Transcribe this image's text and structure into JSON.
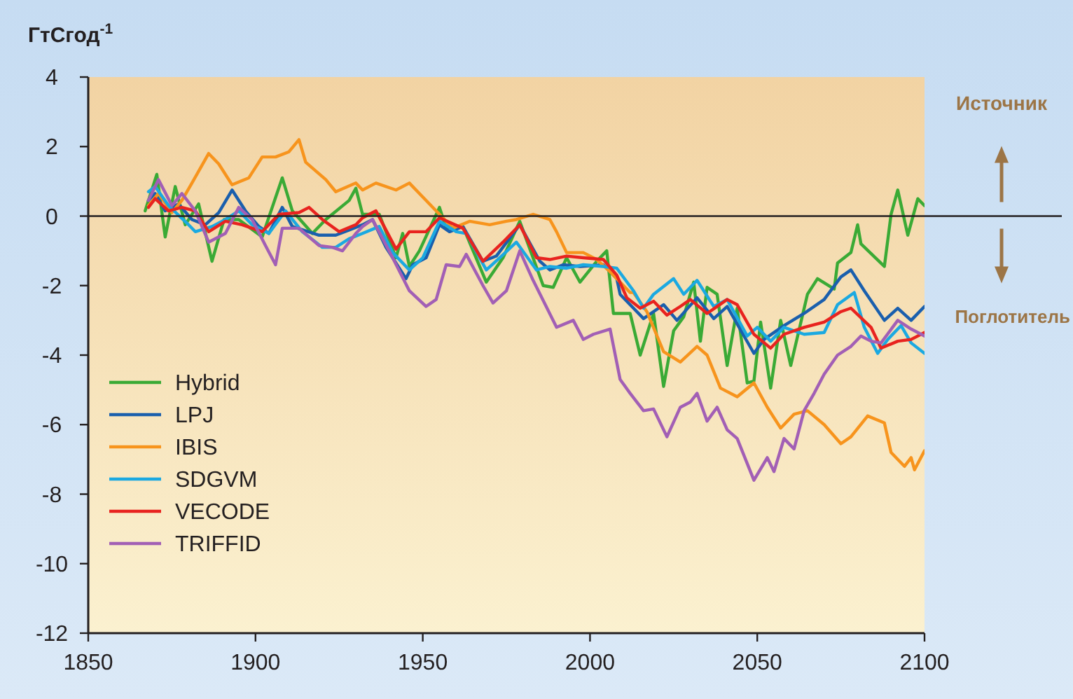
{
  "chart_data": {
    "type": "line",
    "ylabel": "ГтСгод$^{-1}$",
    "xlim": [
      1850,
      2100
    ],
    "ylim": [
      -12,
      4
    ],
    "xticks": [
      1850,
      1900,
      1950,
      2000,
      2050,
      2100
    ],
    "yticks": [
      -12,
      -10,
      -8,
      -6,
      -4,
      -2,
      0,
      2,
      4
    ],
    "grid": false,
    "legend": "bottom left",
    "line_style": "solid",
    "marker": "none",
    "ref_lines": [
      {
        "axis": "y",
        "value": 0,
        "color": "#231f20"
      }
    ],
    "annotations": [
      "Источник",
      "Поглотитель"
    ],
    "series": [
      {
        "name": "Hybrid",
        "color": "#3aaa35",
        "x": [
          1867,
          1870.5,
          1873,
          1876,
          1879,
          1883,
          1887,
          1890.6,
          1895,
          1902,
          1908,
          1911,
          1917,
          1921,
          1928,
          1930,
          1932,
          1937,
          1942,
          1944,
          1946,
          1949,
          1955,
          1957,
          1962,
          1969,
          1974,
          1979,
          1986,
          1989,
          1993,
          1997,
          2002,
          2005,
          2007,
          2012,
          2015,
          2019,
          2022,
          2025,
          2028,
          2031,
          2033,
          2035,
          2038,
          2041,
          2044,
          2047,
          2049,
          2051,
          2054,
          2057,
          2060,
          2065,
          2068,
          2073,
          2074,
          2078,
          2080,
          2081,
          2088,
          2090,
          2092,
          2095,
          2098,
          2100
        ],
        "values": [
          0.15,
          1.2,
          -0.6,
          0.85,
          -0.25,
          0.35,
          -1.3,
          -0.1,
          -0.1,
          -0.6,
          1.1,
          0.15,
          -0.5,
          -0.1,
          0.45,
          0.8,
          0.05,
          0.05,
          -1.2,
          -0.5,
          -1.45,
          -1.0,
          0.25,
          -0.35,
          -0.3,
          -1.9,
          -1.2,
          -0.15,
          -2.0,
          -2.05,
          -1.2,
          -1.9,
          -1.3,
          -1.0,
          -2.8,
          -2.8,
          -4.0,
          -2.8,
          -4.9,
          -3.3,
          -2.9,
          -1.9,
          -3.6,
          -2.05,
          -2.25,
          -4.3,
          -2.65,
          -4.8,
          -4.75,
          -3.05,
          -4.95,
          -3.0,
          -4.3,
          -2.25,
          -1.8,
          -2.1,
          -1.35,
          -1.05,
          -0.25,
          -0.8,
          -1.45,
          0.05,
          0.75,
          -0.55,
          0.5,
          0.3
        ]
      },
      {
        "name": "LPJ",
        "color": "#1a5fad",
        "x": [
          1868,
          1870,
          1873,
          1877,
          1881,
          1885,
          1889,
          1893,
          1897,
          1901,
          1904,
          1908,
          1911,
          1919,
          1924,
          1928,
          1932,
          1935,
          1939,
          1945,
          1947,
          1951,
          1955,
          1958,
          1962,
          1968,
          1972,
          1979,
          1985,
          1988,
          1992,
          1997,
          2004,
          2008,
          2009,
          2013,
          2016,
          2022,
          2026,
          2032,
          2037,
          2041,
          2049,
          2052,
          2058,
          2064,
          2070,
          2075,
          2078,
          2082,
          2088,
          2092,
          2096,
          2100
        ],
        "values": [
          0.45,
          0.65,
          0.15,
          0.35,
          -0.1,
          -0.25,
          0.1,
          0.75,
          0.15,
          -0.3,
          -0.5,
          0.25,
          -0.3,
          -0.55,
          -0.55,
          -0.4,
          -0.25,
          -0.1,
          -0.9,
          -1.8,
          -1.4,
          -1.2,
          -0.25,
          -0.45,
          -0.3,
          -1.3,
          -1.15,
          -0.25,
          -1.3,
          -1.55,
          -1.4,
          -1.45,
          -1.4,
          -1.8,
          -2.25,
          -2.65,
          -2.95,
          -2.55,
          -3.0,
          -2.35,
          -2.95,
          -2.6,
          -3.95,
          -3.55,
          -3.15,
          -2.8,
          -2.4,
          -1.75,
          -1.55,
          -2.15,
          -3.0,
          -2.65,
          -3.0,
          -2.6
        ]
      },
      {
        "name": "IBIS",
        "color": "#f7941d",
        "x": [
          1868,
          1871,
          1875,
          1878,
          1881,
          1886,
          1889,
          1893,
          1898,
          1902,
          1906,
          1910,
          1913,
          1915,
          1921,
          1924,
          1930,
          1932,
          1936,
          1942,
          1946,
          1950,
          1955,
          1959,
          1964,
          1970,
          1975,
          1978,
          1983,
          1988,
          1990,
          1993,
          1998,
          2002,
          2006,
          2012,
          2013,
          2017,
          2022,
          2027,
          2032,
          2035,
          2039,
          2044,
          2049,
          2053,
          2057,
          2061,
          2065,
          2070,
          2075,
          2078,
          2083,
          2088,
          2090,
          2094,
          2096,
          2097,
          2100
        ],
        "values": [
          0.3,
          0.65,
          0.1,
          0.45,
          0.95,
          1.8,
          1.5,
          0.9,
          1.1,
          1.7,
          1.7,
          1.85,
          2.2,
          1.55,
          1.05,
          0.7,
          0.95,
          0.75,
          0.95,
          0.75,
          0.95,
          0.55,
          0.05,
          -0.35,
          -0.15,
          -0.25,
          -0.15,
          -0.1,
          0.05,
          -0.1,
          -0.45,
          -1.05,
          -1.05,
          -1.25,
          -1.6,
          -2.2,
          -2.2,
          -2.75,
          -3.9,
          -4.2,
          -3.75,
          -4.0,
          -4.95,
          -5.2,
          -4.8,
          -5.5,
          -6.1,
          -5.7,
          -5.6,
          -6.0,
          -6.55,
          -6.35,
          -5.75,
          -5.95,
          -6.8,
          -7.2,
          -6.95,
          -7.3,
          -6.75
        ]
      },
      {
        "name": "SDGVM",
        "color": "#1ba9e1",
        "x": [
          1868,
          1870,
          1874,
          1880,
          1882,
          1887,
          1891,
          1895,
          1899,
          1904,
          1909,
          1914,
          1920,
          1924,
          1928,
          1932,
          1937,
          1941,
          1946,
          1950,
          1955,
          1960,
          1963,
          1969,
          1973,
          1978,
          1984,
          1988,
          1993,
          1998,
          2004,
          2008,
          2013,
          2016,
          2019,
          2025,
          2028,
          2032,
          2037,
          2041,
          2047,
          2050,
          2054,
          2058,
          2064,
          2070,
          2074,
          2079,
          2082,
          2086,
          2089,
          2093,
          2096,
          2100
        ],
        "values": [
          0.7,
          0.85,
          0.3,
          -0.25,
          -0.45,
          -0.3,
          -0.1,
          0.15,
          -0.25,
          -0.5,
          0.15,
          -0.45,
          -0.9,
          -0.9,
          -0.65,
          -0.5,
          -0.3,
          -1.05,
          -1.55,
          -1.2,
          -0.15,
          -0.45,
          -0.5,
          -1.55,
          -1.2,
          -0.75,
          -1.55,
          -1.45,
          -1.5,
          -1.4,
          -1.45,
          -1.5,
          -2.15,
          -2.65,
          -2.25,
          -1.8,
          -2.25,
          -1.85,
          -2.6,
          -2.4,
          -3.45,
          -3.2,
          -3.6,
          -3.2,
          -3.4,
          -3.35,
          -2.55,
          -2.2,
          -3.2,
          -3.95,
          -3.55,
          -3.15,
          -3.65,
          -3.95
        ]
      },
      {
        "name": "VECODE",
        "color": "#e8231f",
        "x": [
          1868,
          1870,
          1874,
          1878,
          1882,
          1886,
          1891,
          1896,
          1902,
          1907,
          1913,
          1916,
          1920,
          1925,
          1930,
          1932,
          1936,
          1942,
          1946,
          1951,
          1955,
          1962,
          1968,
          1974,
          1979,
          1984,
          1988,
          1993,
          1998,
          2004,
          2008,
          2011,
          2015,
          2019,
          2023,
          2027,
          2030,
          2035,
          2041,
          2044,
          2049,
          2054,
          2058,
          2064,
          2070,
          2075,
          2078,
          2084,
          2087,
          2092,
          2096,
          2100
        ],
        "values": [
          0.25,
          0.5,
          0.15,
          0.25,
          0.15,
          -0.45,
          -0.15,
          -0.25,
          -0.45,
          0.05,
          0.1,
          0.25,
          -0.1,
          -0.45,
          -0.25,
          -0.05,
          0.15,
          -0.95,
          -0.45,
          -0.45,
          -0.05,
          -0.35,
          -1.3,
          -0.75,
          -0.25,
          -1.2,
          -1.25,
          -1.15,
          -1.2,
          -1.25,
          -1.7,
          -2.35,
          -2.65,
          -2.45,
          -2.85,
          -2.6,
          -2.4,
          -2.8,
          -2.4,
          -2.55,
          -3.4,
          -3.8,
          -3.4,
          -3.2,
          -3.05,
          -2.75,
          -2.65,
          -3.2,
          -3.8,
          -3.6,
          -3.55,
          -3.35
        ]
      },
      {
        "name": "TRIFFID",
        "color": "#a25fb5",
        "x": [
          1868,
          1871,
          1875,
          1878,
          1882,
          1886,
          1891,
          1895,
          1899,
          1903,
          1906,
          1908,
          1913,
          1919,
          1923,
          1926,
          1930,
          1932,
          1935,
          1941,
          1946,
          1951,
          1954,
          1957,
          1961,
          1963,
          1968,
          1971,
          1975,
          1979,
          1983,
          1990,
          1995,
          1998,
          2001,
          2006,
          2009,
          2012,
          2016,
          2019,
          2023,
          2027,
          2030,
          2032,
          2035,
          2038,
          2041,
          2044,
          2049,
          2053,
          2055,
          2058,
          2061,
          2064,
          2067,
          2070,
          2074,
          2078,
          2081,
          2084,
          2087,
          2092,
          2096,
          2100
        ],
        "values": [
          0.45,
          1.05,
          0.3,
          0.65,
          0.15,
          -0.75,
          -0.5,
          0.25,
          -0.1,
          -0.85,
          -1.4,
          -0.35,
          -0.35,
          -0.85,
          -0.9,
          -1.0,
          -0.5,
          -0.3,
          -0.1,
          -1.2,
          -2.15,
          -2.6,
          -2.4,
          -1.4,
          -1.45,
          -1.1,
          -2.0,
          -2.5,
          -2.15,
          -1.0,
          -1.85,
          -3.2,
          -3.0,
          -3.55,
          -3.4,
          -3.25,
          -4.7,
          -5.1,
          -5.6,
          -5.55,
          -6.35,
          -5.5,
          -5.35,
          -5.1,
          -5.9,
          -5.5,
          -6.15,
          -6.4,
          -7.6,
          -6.95,
          -7.35,
          -6.4,
          -6.7,
          -5.6,
          -5.1,
          -4.55,
          -4.0,
          -3.75,
          -3.45,
          -3.6,
          -3.65,
          -3.0,
          -3.25,
          -3.45
        ]
      }
    ]
  }
}
